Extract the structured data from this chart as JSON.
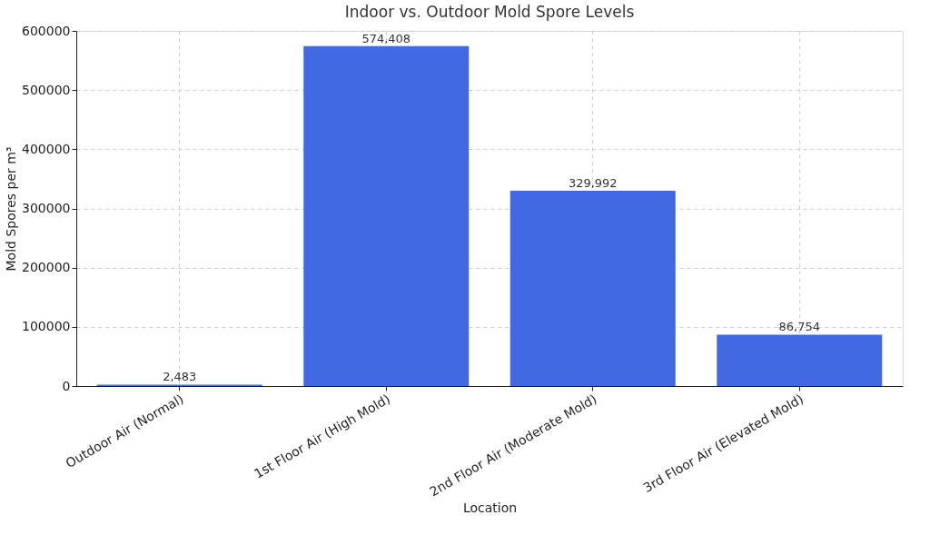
{
  "chart_data": {
    "type": "bar",
    "title": "Indoor vs. Outdoor Mold Spore Levels",
    "xlabel": "Location",
    "ylabel": "Mold Spores per m³",
    "categories": [
      "Outdoor Air (Normal)",
      "1st Floor Air (High Mold)",
      "2nd Floor Air (Moderate Mold)",
      "3rd Floor Air (Elevated Mold)"
    ],
    "values": [
      2483,
      574408,
      329992,
      86754
    ],
    "value_labels": [
      "2,483",
      "574,408",
      "329,992",
      "86,754"
    ],
    "color": "#4169e1",
    "ylim": [
      0,
      600000
    ],
    "yticks": [
      0,
      100000,
      200000,
      300000,
      400000,
      500000,
      600000
    ],
    "grid": true
  }
}
